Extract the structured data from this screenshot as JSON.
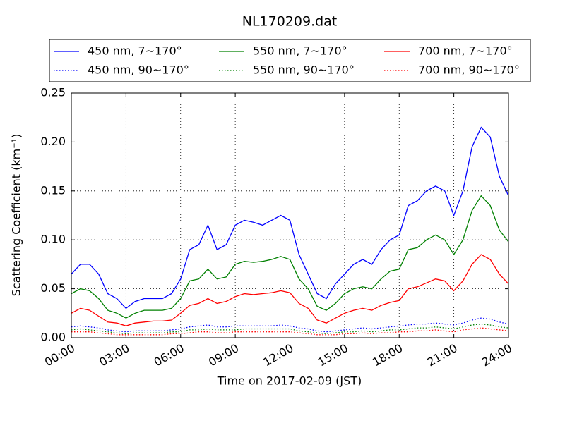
{
  "chart_data": {
    "type": "line",
    "title": "NL170209.dat",
    "x_label": "Time on 2017-02-09 (JST)",
    "y_label": "Scattering Coefficient (km⁻¹)",
    "xlim": [
      0,
      24
    ],
    "ylim": [
      0,
      0.25
    ],
    "xticks": [
      {
        "value": 0,
        "label": "00:00"
      },
      {
        "value": 3,
        "label": "03:00"
      },
      {
        "value": 6,
        "label": "06:00"
      },
      {
        "value": 9,
        "label": "09:00"
      },
      {
        "value": 12,
        "label": "12:00"
      },
      {
        "value": 15,
        "label": "15:00"
      },
      {
        "value": 18,
        "label": "18:00"
      },
      {
        "value": 21,
        "label": "21:00"
      },
      {
        "value": 24,
        "label": "24:00"
      }
    ],
    "yticks": [
      {
        "value": 0,
        "label": "0.00"
      },
      {
        "value": 0.05,
        "label": "0.05"
      },
      {
        "value": 0.1,
        "label": "0.10"
      },
      {
        "value": 0.15,
        "label": "0.15"
      },
      {
        "value": 0.2,
        "label": "0.20"
      },
      {
        "value": 0.25,
        "label": "0.25"
      }
    ],
    "grid": true,
    "legend_position": "top",
    "x": [
      0,
      0.5,
      1,
      1.5,
      2,
      2.5,
      3,
      3.5,
      4,
      4.5,
      5,
      5.5,
      6,
      6.5,
      7,
      7.5,
      8,
      8.5,
      9,
      9.5,
      10,
      10.5,
      11,
      11.5,
      12,
      12.5,
      13,
      13.5,
      14,
      14.5,
      15,
      15.5,
      16,
      16.5,
      17,
      17.5,
      18,
      18.5,
      19,
      19.5,
      20,
      20.5,
      21,
      21.5,
      22,
      22.5,
      23,
      23.5,
      24
    ],
    "series": [
      {
        "name": "450 nm, 7∼170°",
        "color": "#0000ff",
        "style": "solid",
        "values": [
          0.065,
          0.075,
          0.075,
          0.065,
          0.045,
          0.04,
          0.03,
          0.037,
          0.04,
          0.04,
          0.04,
          0.045,
          0.06,
          0.09,
          0.095,
          0.115,
          0.09,
          0.095,
          0.115,
          0.12,
          0.118,
          0.115,
          0.12,
          0.125,
          0.12,
          0.085,
          0.065,
          0.045,
          0.04,
          0.055,
          0.065,
          0.075,
          0.08,
          0.075,
          0.09,
          0.1,
          0.105,
          0.135,
          0.14,
          0.15,
          0.155,
          0.15,
          0.125,
          0.15,
          0.195,
          0.215,
          0.205,
          0.165,
          0.145
        ]
      },
      {
        "name": "450 nm, 90∼170°",
        "color": "#0000ff",
        "style": "dotted",
        "values": [
          0.011,
          0.012,
          0.011,
          0.01,
          0.008,
          0.007,
          0.006,
          0.007,
          0.007,
          0.007,
          0.007,
          0.008,
          0.009,
          0.011,
          0.012,
          0.013,
          0.011,
          0.011,
          0.012,
          0.012,
          0.012,
          0.012,
          0.012,
          0.013,
          0.012,
          0.01,
          0.009,
          0.007,
          0.006,
          0.007,
          0.008,
          0.009,
          0.01,
          0.009,
          0.01,
          0.011,
          0.012,
          0.013,
          0.014,
          0.014,
          0.015,
          0.014,
          0.013,
          0.015,
          0.018,
          0.02,
          0.019,
          0.016,
          0.014
        ]
      },
      {
        "name": "550 nm, 7∼170°",
        "color": "#008000",
        "style": "solid",
        "values": [
          0.045,
          0.05,
          0.048,
          0.04,
          0.028,
          0.025,
          0.02,
          0.025,
          0.028,
          0.028,
          0.028,
          0.03,
          0.04,
          0.058,
          0.06,
          0.07,
          0.06,
          0.062,
          0.075,
          0.078,
          0.077,
          0.078,
          0.08,
          0.083,
          0.08,
          0.06,
          0.05,
          0.032,
          0.028,
          0.035,
          0.045,
          0.05,
          0.052,
          0.05,
          0.06,
          0.068,
          0.07,
          0.09,
          0.092,
          0.1,
          0.105,
          0.1,
          0.085,
          0.1,
          0.13,
          0.145,
          0.135,
          0.11,
          0.098
        ]
      },
      {
        "name": "550 nm, 90∼170°",
        "color": "#008000",
        "style": "dotted",
        "values": [
          0.008,
          0.009,
          0.008,
          0.007,
          0.006,
          0.005,
          0.004,
          0.005,
          0.005,
          0.005,
          0.005,
          0.006,
          0.006,
          0.008,
          0.008,
          0.009,
          0.008,
          0.008,
          0.008,
          0.009,
          0.009,
          0.009,
          0.009,
          0.009,
          0.009,
          0.007,
          0.006,
          0.005,
          0.004,
          0.005,
          0.006,
          0.006,
          0.007,
          0.006,
          0.007,
          0.008,
          0.008,
          0.009,
          0.01,
          0.01,
          0.011,
          0.01,
          0.009,
          0.011,
          0.013,
          0.014,
          0.013,
          0.011,
          0.01
        ]
      },
      {
        "name": "700 nm, 7∼170°",
        "color": "#ff0000",
        "style": "solid",
        "values": [
          0.025,
          0.03,
          0.028,
          0.022,
          0.016,
          0.015,
          0.012,
          0.015,
          0.016,
          0.017,
          0.017,
          0.018,
          0.025,
          0.033,
          0.035,
          0.04,
          0.035,
          0.037,
          0.042,
          0.045,
          0.044,
          0.045,
          0.046,
          0.048,
          0.046,
          0.035,
          0.03,
          0.018,
          0.015,
          0.02,
          0.025,
          0.028,
          0.03,
          0.028,
          0.033,
          0.036,
          0.038,
          0.05,
          0.052,
          0.056,
          0.06,
          0.058,
          0.048,
          0.058,
          0.075,
          0.085,
          0.08,
          0.065,
          0.055
        ]
      },
      {
        "name": "700 nm, 90∼170°",
        "color": "#ff0000",
        "style": "dotted",
        "values": [
          0.006,
          0.006,
          0.006,
          0.005,
          0.004,
          0.003,
          0.003,
          0.003,
          0.003,
          0.003,
          0.003,
          0.004,
          0.004,
          0.005,
          0.006,
          0.006,
          0.005,
          0.005,
          0.006,
          0.006,
          0.006,
          0.006,
          0.006,
          0.006,
          0.006,
          0.005,
          0.004,
          0.003,
          0.003,
          0.003,
          0.004,
          0.004,
          0.005,
          0.004,
          0.005,
          0.005,
          0.006,
          0.006,
          0.007,
          0.007,
          0.008,
          0.007,
          0.006,
          0.008,
          0.009,
          0.01,
          0.009,
          0.008,
          0.007
        ]
      }
    ]
  }
}
